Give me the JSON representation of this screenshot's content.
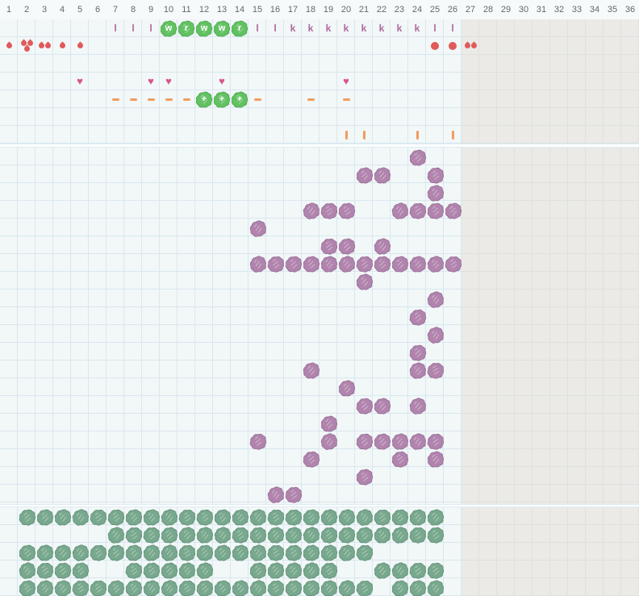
{
  "grid": {
    "columns": 36,
    "active_columns": 26,
    "cell_size": 22,
    "header_numbers": [
      "1",
      "2",
      "3",
      "4",
      "5",
      "6",
      "7",
      "8",
      "9",
      "10",
      "11",
      "12",
      "13",
      "14",
      "15",
      "16",
      "17",
      "18",
      "19",
      "20",
      "21",
      "22",
      "23",
      "24",
      "25",
      "26",
      "27",
      "28",
      "29",
      "30",
      "31",
      "32",
      "33",
      "34",
      "35",
      "36"
    ]
  },
  "colors": {
    "background_light": "#f2f7f8",
    "grid_line": "#d9e8ee",
    "inactive_gray": "#ebeae7",
    "header_text": "#63686d",
    "green_blob": "#62c162",
    "green_blob_edge": "#4daa4d",
    "purple_blob": "#b184ae",
    "purple_blob_edge": "#996f97",
    "teal_blob": "#78a88d",
    "teal_blob_edge": "#619178",
    "letter_mauve": "#b0689e",
    "drop_red": "#e05a5a",
    "heart_pink": "#d9548c",
    "mark_orange": "#f09d60"
  },
  "icons": {
    "drop": "water-drop-icon",
    "dot": "dot-icon",
    "heart": "heart-icon",
    "dash": "dash-icon",
    "bar": "tick-bar-icon",
    "crop": "crop-blob-icon"
  },
  "top_section": {
    "rows": 7,
    "letters_row_index": 0,
    "letters": [
      {
        "col": 7,
        "ch": "l",
        "variant": "plain"
      },
      {
        "col": 8,
        "ch": "l",
        "variant": "plain"
      },
      {
        "col": 9,
        "ch": "l",
        "variant": "plain"
      },
      {
        "col": 10,
        "ch": "w",
        "variant": "blob"
      },
      {
        "col": 11,
        "ch": "r",
        "variant": "blob"
      },
      {
        "col": 12,
        "ch": "w",
        "variant": "blob"
      },
      {
        "col": 13,
        "ch": "w",
        "variant": "blob"
      },
      {
        "col": 14,
        "ch": "r",
        "variant": "blob"
      },
      {
        "col": 15,
        "ch": "l",
        "variant": "plain"
      },
      {
        "col": 16,
        "ch": "l",
        "variant": "plain"
      },
      {
        "col": 17,
        "ch": "k",
        "variant": "plain"
      },
      {
        "col": 18,
        "ch": "k",
        "variant": "plain"
      },
      {
        "col": 19,
        "ch": "k",
        "variant": "plain"
      },
      {
        "col": 20,
        "ch": "k",
        "variant": "plain"
      },
      {
        "col": 21,
        "ch": "k",
        "variant": "plain"
      },
      {
        "col": 22,
        "ch": "k",
        "variant": "plain"
      },
      {
        "col": 23,
        "ch": "k",
        "variant": "plain"
      },
      {
        "col": 24,
        "ch": "k",
        "variant": "plain"
      },
      {
        "col": 25,
        "ch": "l",
        "variant": "plain"
      },
      {
        "col": 26,
        "ch": "l",
        "variant": "plain"
      }
    ],
    "water_row_index": 1,
    "water": [
      {
        "col": 1,
        "type": "drop1"
      },
      {
        "col": 2,
        "type": "drop3"
      },
      {
        "col": 3,
        "type": "drop2"
      },
      {
        "col": 4,
        "type": "drop1"
      },
      {
        "col": 5,
        "type": "drop1"
      },
      {
        "col": 25,
        "type": "dot"
      },
      {
        "col": 26,
        "type": "dot"
      },
      {
        "col": 27,
        "type": "drop2"
      }
    ],
    "hearts_row_index": 3,
    "hearts": [
      5,
      9,
      10,
      13,
      20
    ],
    "care_row_index": 4,
    "care": [
      {
        "col": 7,
        "type": "dash"
      },
      {
        "col": 8,
        "type": "dash"
      },
      {
        "col": 9,
        "type": "dash"
      },
      {
        "col": 10,
        "type": "dash"
      },
      {
        "col": 11,
        "type": "dash"
      },
      {
        "col": 12,
        "type": "plus"
      },
      {
        "col": 13,
        "type": "plus"
      },
      {
        "col": 14,
        "type": "plus"
      },
      {
        "col": 15,
        "type": "dash"
      },
      {
        "col": 18,
        "type": "dash"
      },
      {
        "col": 20,
        "type": "dash"
      }
    ],
    "bars_row_index": 6,
    "bars": [
      20,
      21,
      24,
      26
    ],
    "plus_symbol": "+",
    "heart_symbol": "♥"
  },
  "middle_section": {
    "rows": 20,
    "blobs": [
      {
        "row": 0,
        "cols": [
          24
        ]
      },
      {
        "row": 1,
        "cols": [
          21,
          22,
          25
        ]
      },
      {
        "row": 2,
        "cols": [
          25
        ]
      },
      {
        "row": 3,
        "cols": [
          18,
          19,
          20,
          23,
          24,
          25,
          26
        ]
      },
      {
        "row": 4,
        "cols": [
          15
        ]
      },
      {
        "row": 5,
        "cols": [
          19,
          20,
          22
        ]
      },
      {
        "row": 6,
        "cols": [
          15,
          16,
          17,
          18,
          19,
          20,
          21,
          22,
          23,
          24,
          25,
          26
        ]
      },
      {
        "row": 7,
        "cols": [
          21
        ]
      },
      {
        "row": 8,
        "cols": [
          25
        ]
      },
      {
        "row": 9,
        "cols": [
          24
        ]
      },
      {
        "row": 10,
        "cols": [
          25
        ]
      },
      {
        "row": 11,
        "cols": [
          24
        ]
      },
      {
        "row": 12,
        "cols": [
          18,
          24,
          25
        ]
      },
      {
        "row": 13,
        "cols": [
          20
        ]
      },
      {
        "row": 14,
        "cols": [
          21,
          22,
          24
        ]
      },
      {
        "row": 15,
        "cols": [
          19
        ]
      },
      {
        "row": 16,
        "cols": [
          15,
          19,
          21,
          22,
          23,
          24,
          25
        ]
      },
      {
        "row": 17,
        "cols": [
          18,
          23,
          25
        ]
      },
      {
        "row": 18,
        "cols": [
          21
        ]
      },
      {
        "row": 19,
        "cols": [
          16,
          17
        ]
      }
    ]
  },
  "bottom_section": {
    "rows": 5,
    "blobs": [
      {
        "row": 0,
        "cols": [
          2,
          3,
          4,
          5,
          6,
          7,
          8,
          9,
          10,
          11,
          12,
          13,
          14,
          15,
          16,
          17,
          18,
          19,
          20,
          21,
          22,
          23,
          24,
          25
        ]
      },
      {
        "row": 1,
        "cols": [
          7,
          8,
          9,
          10,
          11,
          12,
          13,
          14,
          15,
          16,
          17,
          18,
          19,
          20,
          21,
          22,
          23,
          24,
          25
        ]
      },
      {
        "row": 2,
        "cols": [
          2,
          3,
          4,
          5,
          6,
          7,
          8,
          9,
          10,
          11,
          12,
          13,
          14,
          15,
          16,
          17,
          18,
          19,
          20,
          21
        ]
      },
      {
        "row": 3,
        "cols": [
          2,
          3,
          4,
          5,
          8,
          9,
          10,
          11,
          12,
          15,
          16,
          17,
          18,
          19,
          22,
          23,
          24,
          25
        ]
      },
      {
        "row": 4,
        "cols": [
          2,
          3,
          4,
          5,
          6,
          7,
          8,
          9,
          10,
          11,
          12,
          13,
          14,
          15,
          16,
          17,
          18,
          19,
          20,
          21,
          23,
          24,
          25
        ]
      }
    ]
  }
}
